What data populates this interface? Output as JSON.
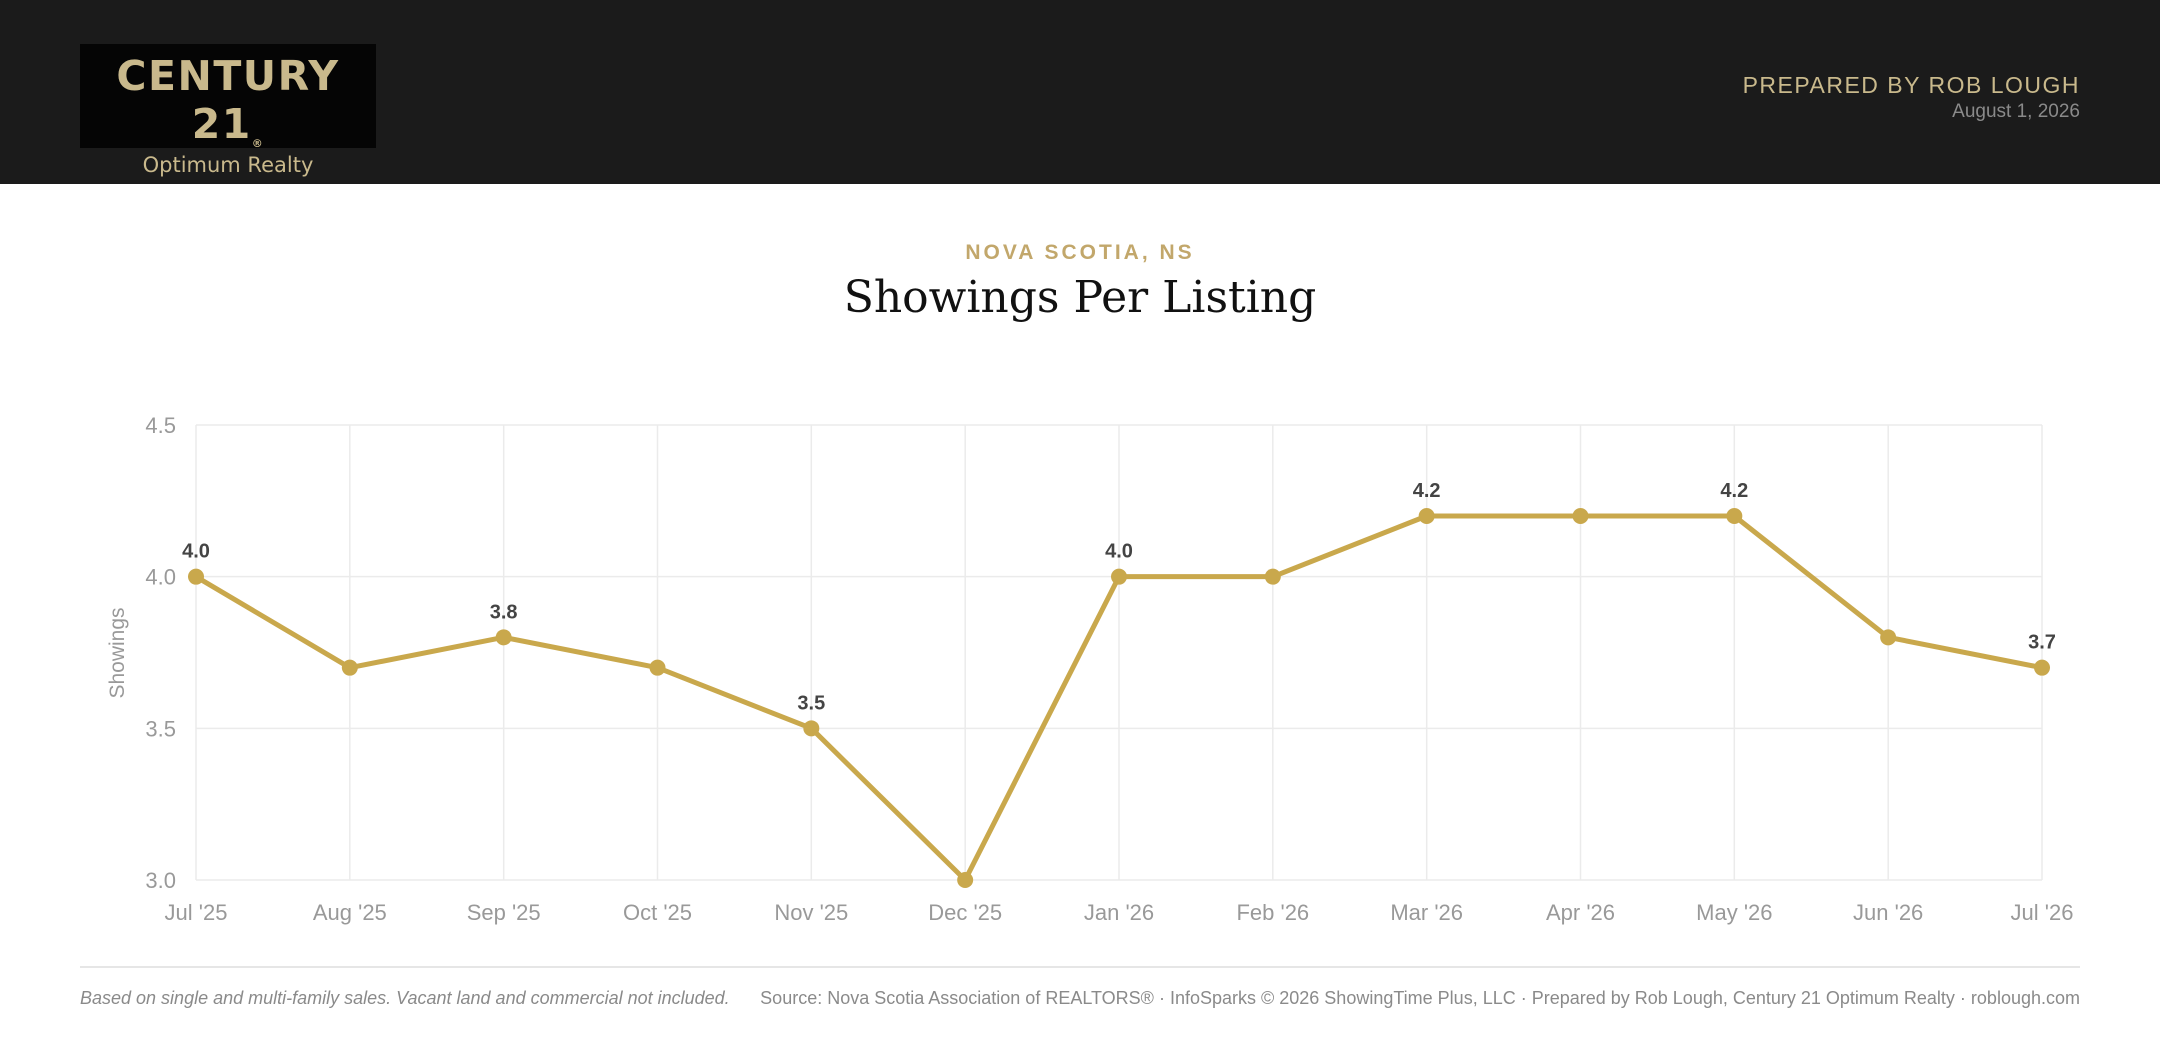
{
  "header": {
    "logo_main": "CENTURY 21",
    "logo_reg": "®",
    "logo_sub": "Optimum Realty",
    "prepared_by": "PREPARED BY ROB LOUGH",
    "date": "August 1, 2026"
  },
  "colors": {
    "header_bg": "#1b1b1b",
    "gold": "#c2a76b",
    "line": "#c9a84c"
  },
  "chart_data": {
    "type": "line",
    "region": "NOVA SCOTIA, NS",
    "title": "Showings Per Listing",
    "ylabel": "Showings",
    "xlabel": "",
    "ylim": [
      3.0,
      4.5
    ],
    "yticks": [
      "3.0",
      "3.5",
      "4.0",
      "4.5"
    ],
    "grid": true,
    "x": [
      "Jul '25",
      "Aug '25",
      "Sep '25",
      "Oct '25",
      "Nov '25",
      "Dec '25",
      "Jan '26",
      "Feb '26",
      "Mar '26",
      "Apr '26",
      "May '26",
      "Jun '26",
      "Jul '26"
    ],
    "values": [
      4.0,
      3.7,
      3.8,
      3.7,
      3.5,
      3.0,
      4.0,
      4.0,
      4.2,
      4.2,
      4.2,
      3.8,
      3.7
    ],
    "data_labels": [
      "4.0",
      "",
      "3.8",
      "",
      "3.5",
      "",
      "4.0",
      "",
      "4.2",
      "",
      "4.2",
      "",
      "3.7"
    ]
  },
  "footer": {
    "note": "Based on single and multi-family sales. Vacant land and commercial not included.",
    "source": "Source: Nova Scotia Association of REALTORS® · InfoSparks © 2026 ShowingTime Plus, LLC · Prepared by Rob Lough, Century 21 Optimum Realty · roblough.com"
  }
}
